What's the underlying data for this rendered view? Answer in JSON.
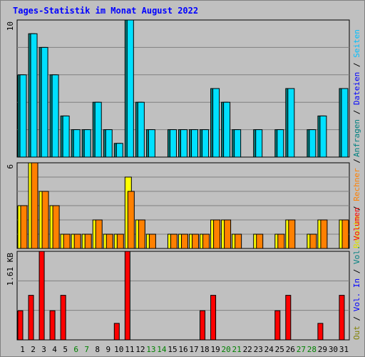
{
  "chart_data": [
    {
      "type": "bar",
      "title": "Tages-Statistik im Monat August 2022",
      "ymax_label": "10",
      "ylim": [
        0,
        10
      ],
      "categories": [
        "1",
        "2",
        "3",
        "4",
        "5",
        "6",
        "7",
        "8",
        "9",
        "10",
        "11",
        "12",
        "13",
        "14",
        "15",
        "16",
        "17",
        "18",
        "19",
        "20",
        "21",
        "22",
        "23",
        "24",
        "25",
        "26",
        "27",
        "28",
        "29",
        "30",
        "31"
      ],
      "weekend_days": [
        "6",
        "7",
        "13",
        "14",
        "20",
        "21",
        "27",
        "28"
      ],
      "series": [
        {
          "name": "Anfragen",
          "color": "#008080",
          "values": [
            6,
            9,
            8,
            6,
            3,
            2,
            2,
            4,
            2,
            1,
            10,
            4,
            2,
            0,
            2,
            2,
            2,
            2,
            5,
            4,
            2,
            0,
            2,
            0,
            2,
            5,
            0,
            2,
            3,
            0,
            5
          ]
        },
        {
          "name": "Dateien",
          "color": "#00e0ff",
          "values": [
            6,
            9,
            8,
            6,
            3,
            2,
            2,
            4,
            2,
            1,
            10,
            4,
            2,
            0,
            2,
            2,
            2,
            2,
            5,
            4,
            2,
            0,
            2,
            0,
            2,
            5,
            0,
            2,
            3,
            0,
            5
          ]
        },
        {
          "name": "Seiten",
          "color": "#00c0ff",
          "values": [
            0,
            0,
            0,
            0,
            0,
            0,
            0,
            0,
            0,
            0,
            0,
            0,
            0,
            0,
            0,
            0,
            0,
            0,
            0,
            0,
            0,
            0,
            0,
            0,
            0,
            0,
            0,
            0,
            0,
            0,
            0
          ]
        }
      ],
      "right_label_parts": [
        {
          "text": "Anfragen",
          "color": "#008080"
        },
        {
          "text": " / ",
          "color": "#000000"
        },
        {
          "text": "Dateien",
          "color": "#0000ff"
        },
        {
          "text": " / ",
          "color": "#000000"
        },
        {
          "text": "Seiten",
          "color": "#00c0ff"
        }
      ]
    },
    {
      "type": "bar",
      "ymax_label": "6",
      "ylim": [
        0,
        6
      ],
      "series": [
        {
          "name": "Besuche",
          "color": "#ffff00",
          "values": [
            3,
            6,
            4,
            3,
            1,
            1,
            1,
            2,
            1,
            1,
            5,
            2,
            1,
            0,
            1,
            1,
            1,
            1,
            2,
            2,
            1,
            0,
            1,
            0,
            1,
            2,
            0,
            1,
            2,
            0,
            2
          ]
        },
        {
          "name": "Rechner",
          "color": "#ff8000",
          "values": [
            3,
            6,
            4,
            3,
            1,
            1,
            1,
            2,
            1,
            1,
            4,
            2,
            1,
            0,
            1,
            1,
            1,
            1,
            2,
            2,
            1,
            0,
            1,
            0,
            1,
            2,
            0,
            1,
            2,
            0,
            2
          ]
        }
      ],
      "right_label_parts": [
        {
          "text": "Besuche",
          "color": "#e0e000"
        },
        {
          "text": " / ",
          "color": "#000000"
        },
        {
          "text": "Rechner",
          "color": "#ff8000"
        },
        {
          "text": " / ",
          "color": "#000000"
        }
      ]
    },
    {
      "type": "bar",
      "ymax_label": "1.61 KB",
      "ylim": [
        0,
        1.61
      ],
      "series": [
        {
          "name": "Volumen",
          "color": "#ff0000",
          "values": [
            0.53,
            0.81,
            1.61,
            0.53,
            0.81,
            0,
            0,
            0,
            0,
            0.3,
            1.61,
            0,
            0,
            0,
            0,
            0,
            0,
            0.53,
            0.81,
            0,
            0,
            0,
            0,
            0,
            0.53,
            0.81,
            0,
            0,
            0.3,
            0,
            0.81
          ]
        }
      ],
      "right_label_parts": [
        {
          "text": "Out",
          "color": "#808000"
        },
        {
          "text": " / ",
          "color": "#000000"
        },
        {
          "text": "Vol. In",
          "color": "#0000ff"
        },
        {
          "text": " / ",
          "color": "#000000"
        },
        {
          "text": "Vol. ",
          "color": "#008080"
        },
        {
          "text": "Volumen",
          "color": "#ff0000"
        }
      ]
    }
  ]
}
